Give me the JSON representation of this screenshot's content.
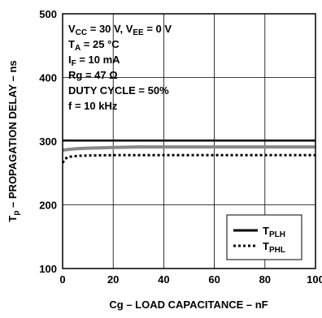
{
  "chart_data": {
    "type": "line",
    "xlabel": "Cg – LOAD CAPACITANCE – nF",
    "ylabel": {
      "main": "T",
      "sub": "p",
      "rest": " – PROPAGATION DELAY – ns"
    },
    "xlim": [
      0,
      100
    ],
    "ylim": [
      100,
      500
    ],
    "x_ticks": [
      "0",
      "20",
      "40",
      "60",
      "80",
      "100"
    ],
    "y_ticks": [
      "100",
      "200",
      "300",
      "400",
      "500"
    ],
    "grid": true,
    "conditions": [
      {
        "parts": [
          {
            "t": "V"
          },
          {
            "t": "CC",
            "sub": true
          },
          {
            "t": " = 30 V, V"
          },
          {
            "t": "EE",
            "sub": true
          },
          {
            "t": " = 0 V"
          }
        ]
      },
      {
        "parts": [
          {
            "t": "T"
          },
          {
            "t": "A",
            "sub": true
          },
          {
            "t": " = 25 °C"
          }
        ]
      },
      {
        "parts": [
          {
            "t": "I"
          },
          {
            "t": "F",
            "sub": true
          },
          {
            "t": " = 10 mA"
          }
        ]
      },
      {
        "parts": [
          {
            "t": "Rg = 47 Ω"
          }
        ]
      },
      {
        "parts": [
          {
            "t": "DUTY CYCLE = 50%"
          }
        ]
      },
      {
        "parts": [
          {
            "t": "f = 10 kHz"
          }
        ]
      }
    ],
    "legend_position": "bottom-right",
    "series": [
      {
        "name": "TPLH",
        "label_main": "T",
        "label_sub": "PLH",
        "style": "solid",
        "color": "#000000",
        "x": [
          0,
          100
        ],
        "y": [
          301,
          301
        ]
      },
      {
        "name": "",
        "style": "solid-gray",
        "color": "#888888",
        "x": [
          0,
          5,
          10,
          20,
          30,
          40,
          60,
          80,
          100
        ],
        "y": [
          286,
          288,
          289,
          290,
          291,
          291,
          291,
          291,
          291
        ]
      },
      {
        "name": "TPHL",
        "label_main": "T",
        "label_sub": "PHL",
        "style": "dotted",
        "color": "#000000",
        "x": [
          0,
          1,
          2,
          4,
          6,
          10,
          20,
          30,
          40,
          60,
          80,
          100
        ],
        "y": [
          266,
          272,
          275,
          276,
          277,
          277.5,
          278,
          278,
          278,
          278,
          278,
          278
        ]
      }
    ]
  }
}
